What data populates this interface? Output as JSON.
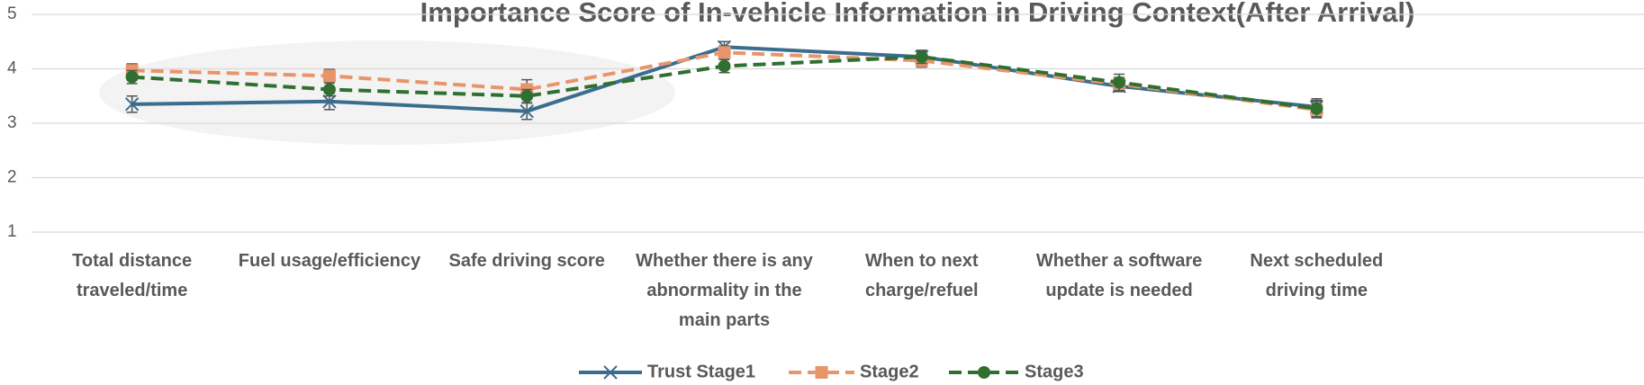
{
  "chart_data": {
    "type": "line",
    "title": "Importance Score of In-vehicle Information in Driving Context(After Arrival)",
    "categories": [
      "Total distance traveled/time",
      "Fuel usage/efficiency",
      "Safe driving score",
      "Whether there is any abnormality in the main parts",
      "When to next charge/refuel",
      "Whether a software update is needed",
      "Next scheduled driving time"
    ],
    "series": [
      {
        "name": "Trust Stage1",
        "color": "#3b6d8e",
        "marker": "x",
        "dash": false,
        "values": [
          3.35,
          3.4,
          3.22,
          4.4,
          4.22,
          3.68,
          3.3
        ],
        "errors": [
          0.15,
          0.15,
          0.15,
          0.1,
          0.1,
          0.1,
          0.15
        ]
      },
      {
        "name": "Stage2",
        "color": "#e8956b",
        "marker": "square",
        "dash": true,
        "values": [
          3.97,
          3.87,
          3.62,
          4.3,
          4.15,
          3.72,
          3.25
        ],
        "errors": [
          0.12,
          0.12,
          0.18,
          0.12,
          0.12,
          0.12,
          0.15
        ]
      },
      {
        "name": "Stage3",
        "color": "#2f7031",
        "marker": "circle",
        "dash": true,
        "values": [
          3.85,
          3.62,
          3.5,
          4.05,
          4.22,
          3.75,
          3.27
        ],
        "errors": [
          0.12,
          0.12,
          0.12,
          0.12,
          0.12,
          0.15,
          0.15
        ]
      }
    ],
    "ylim": [
      1,
      5
    ],
    "yticks": [
      1,
      2,
      3,
      4,
      5
    ],
    "grid": true,
    "legend": "bottom"
  }
}
